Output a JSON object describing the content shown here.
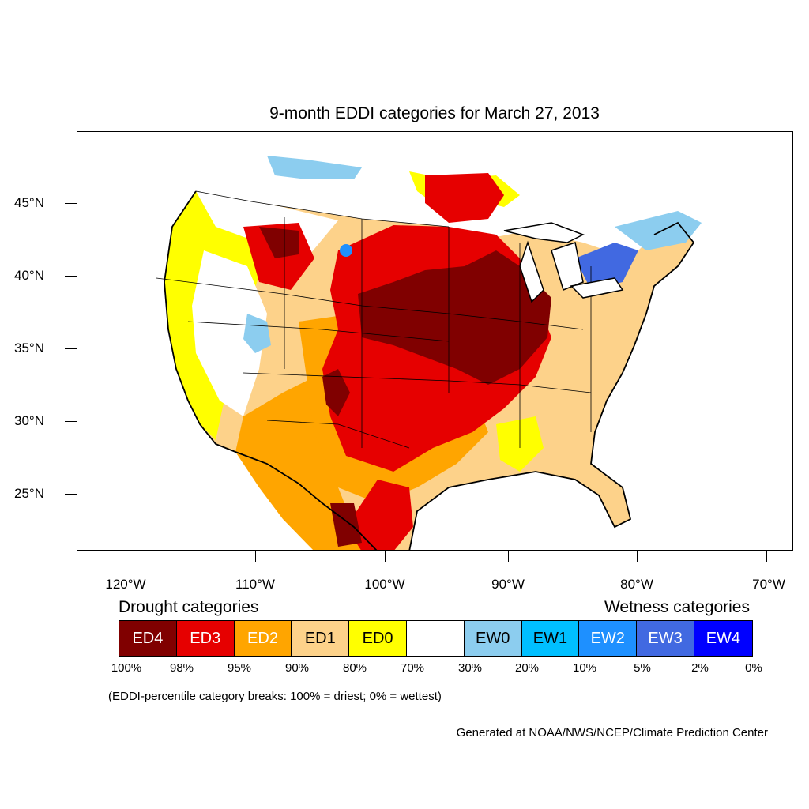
{
  "title": "9-month EDDI categories for March 27, 2013",
  "colors": {
    "ED4": "#800000",
    "ED3": "#e60000",
    "ED2": "#ffa500",
    "ED1": "#fdd28a",
    "ED0": "#ffff00",
    "neutral": "#ffffff",
    "EW0": "#8ccdef",
    "EW1": "#00bfff",
    "EW2": "#1e90ff",
    "EW3": "#4169e1",
    "EW4": "#0000ff"
  },
  "axes": {
    "lat_labels": [
      "45°N",
      "40°N",
      "35°N",
      "30°N",
      "25°N"
    ],
    "lon_labels": [
      "120°W",
      "110°W",
      "100°W",
      "90°W",
      "80°W",
      "70°W"
    ]
  },
  "legend": {
    "drought_heading": "Drought categories",
    "wetness_heading": "Wetness categories",
    "categories": [
      {
        "label": "ED4",
        "color": "#800000",
        "text_color": "#ffffff"
      },
      {
        "label": "ED3",
        "color": "#e60000",
        "text_color": "#ffffff"
      },
      {
        "label": "ED2",
        "color": "#ffa500",
        "text_color": "#ffffff"
      },
      {
        "label": "ED1",
        "color": "#fdd28a",
        "text_color": "#000000"
      },
      {
        "label": "ED0",
        "color": "#ffff00",
        "text_color": "#000000"
      },
      {
        "label": "",
        "color": "#ffffff",
        "text_color": "#000000"
      },
      {
        "label": "EW0",
        "color": "#8ccdef",
        "text_color": "#000000"
      },
      {
        "label": "EW1",
        "color": "#00bfff",
        "text_color": "#000000"
      },
      {
        "label": "EW2",
        "color": "#1e90ff",
        "text_color": "#ffffff"
      },
      {
        "label": "EW3",
        "color": "#4169e1",
        "text_color": "#ffffff"
      },
      {
        "label": "EW4",
        "color": "#0000ff",
        "text_color": "#ffffff"
      }
    ],
    "breaks": [
      "100%",
      "98%",
      "95%",
      "90%",
      "80%",
      "70%",
      "30%",
      "20%",
      "10%",
      "5%",
      "2%",
      "0%"
    ]
  },
  "note": "(EDDI-percentile category breaks: 100% = driest; 0% = wettest)",
  "credit": "Generated at NOAA/NWS/NCEP/Climate Prediction Center"
}
